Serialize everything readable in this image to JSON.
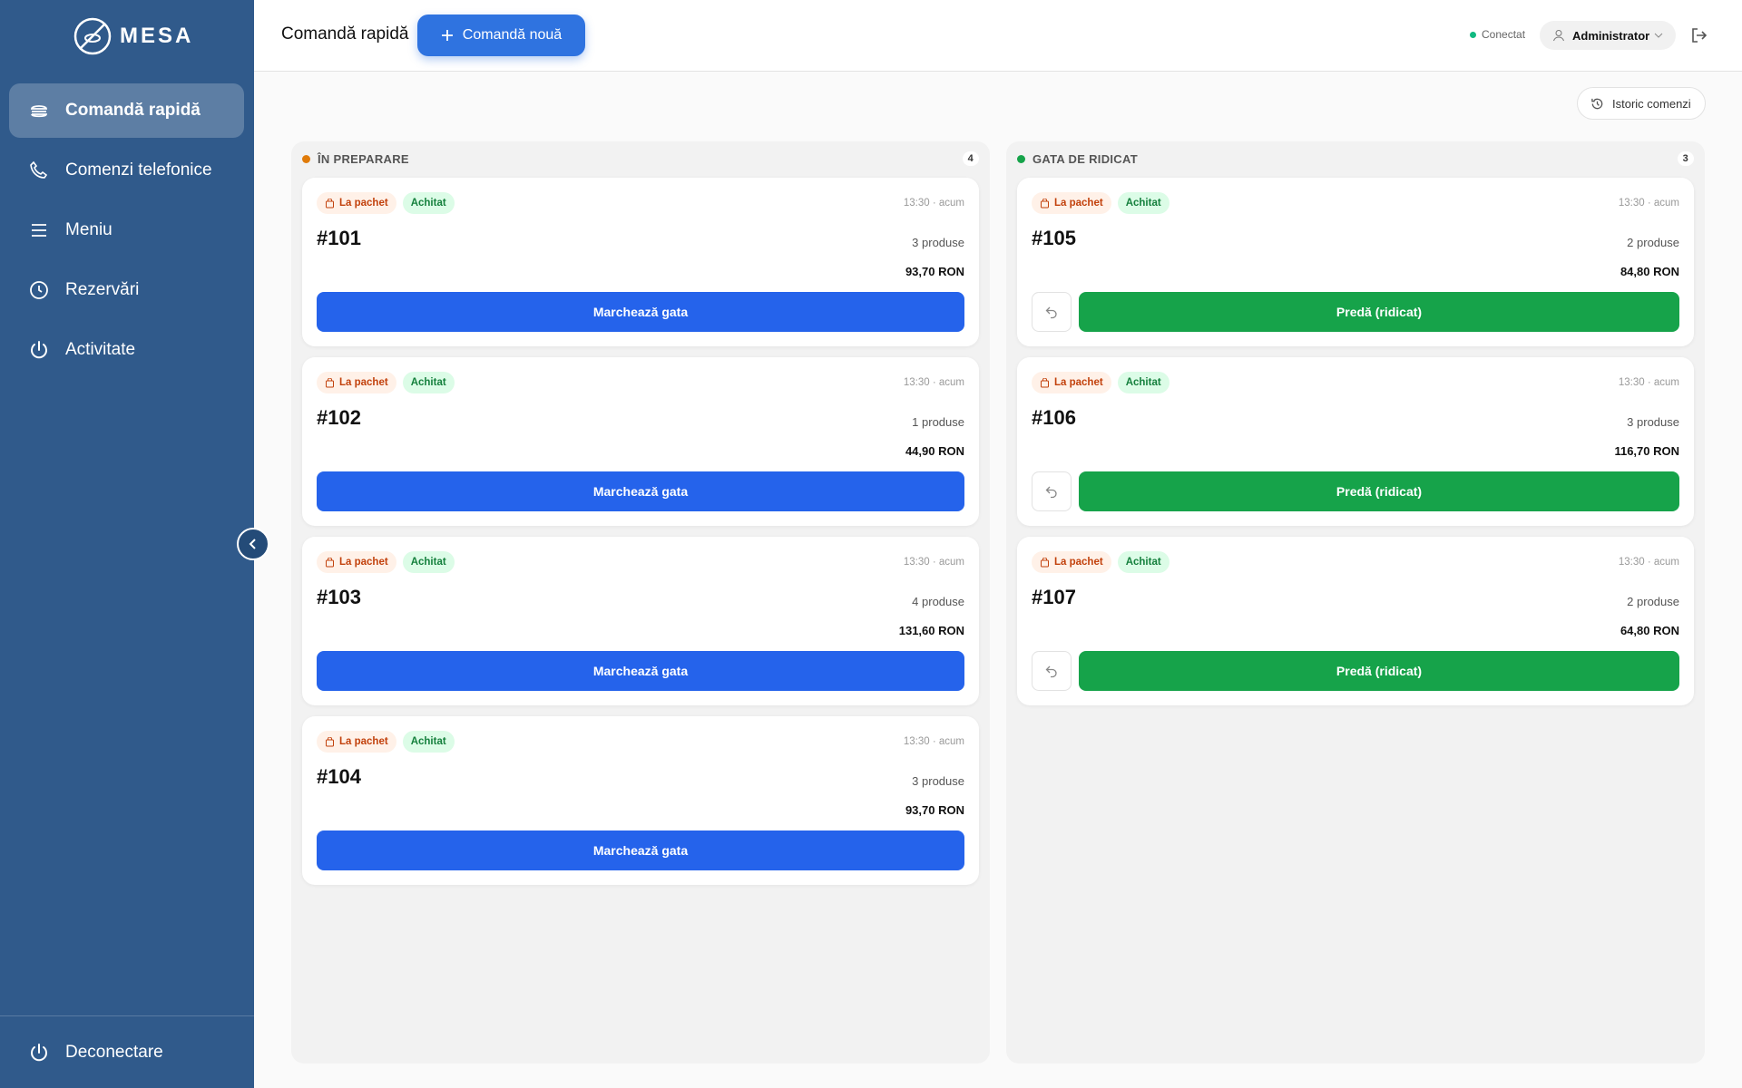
{
  "sidebar": {
    "brand": "MESA",
    "nav": [
      "Comandă rapidă",
      "Comenzi telefonice",
      "Meniu",
      "Rezervări",
      "Activitate"
    ],
    "logout": "Deconectare"
  },
  "header": {
    "title": "Comandă rapidă",
    "new_order": "Comandă nouă",
    "status": "Conectat",
    "user": "Administrator"
  },
  "history": "Istoric comenzi",
  "columns": [
    {
      "title": "ÎN PREPARARE",
      "count": 4,
      "action": "Marchează gata",
      "cards": [
        {
          "tag": "La pachet",
          "paid": "Achitat",
          "time": "13:30 · acum",
          "id": "#101",
          "items": "3 produse",
          "total": "93,70 RON"
        },
        {
          "tag": "La pachet",
          "paid": "Achitat",
          "time": "13:30 · acum",
          "id": "#102",
          "items": "1 produse",
          "total": "44,90 RON"
        },
        {
          "tag": "La pachet",
          "paid": "Achitat",
          "time": "13:30 · acum",
          "id": "#103",
          "items": "4 produse",
          "total": "131,60 RON"
        },
        {
          "tag": "La pachet",
          "paid": "Achitat",
          "time": "13:30 · acum",
          "id": "#104",
          "items": "3 produse",
          "total": "93,70 RON"
        }
      ]
    },
    {
      "title": "GATA DE RIDICAT",
      "count": 3,
      "action": "Predă (ridicat)",
      "cards": [
        {
          "tag": "La pachet",
          "paid": "Achitat",
          "time": "13:30 · acum",
          "id": "#105",
          "items": "2 produse",
          "total": "84,80 RON"
        },
        {
          "tag": "La pachet",
          "paid": "Achitat",
          "time": "13:30 · acum",
          "id": "#106",
          "items": "3 produse",
          "total": "116,70 RON"
        },
        {
          "tag": "La pachet",
          "paid": "Achitat",
          "time": "13:30 · acum",
          "id": "#107",
          "items": "2 produse",
          "total": "64,80 RON"
        }
      ]
    }
  ]
}
